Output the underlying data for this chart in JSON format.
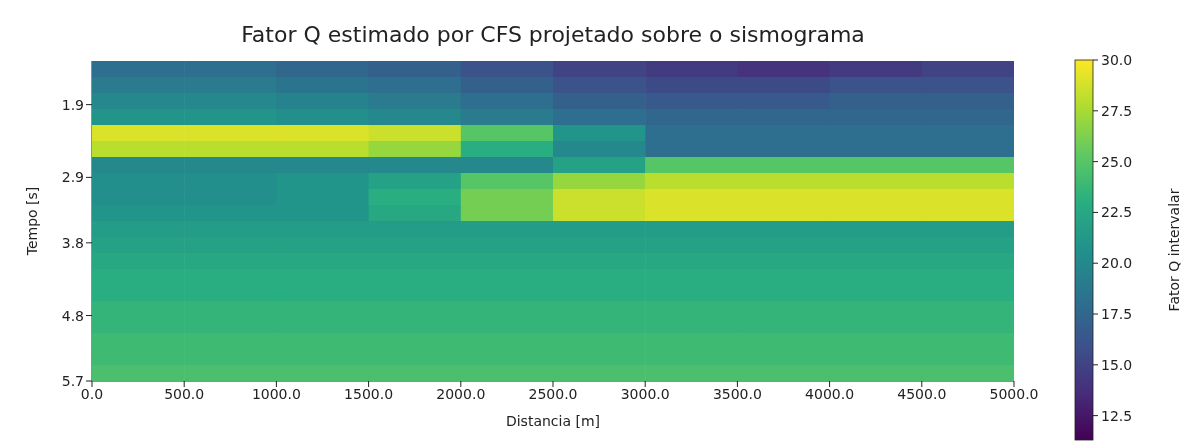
{
  "chart_data": {
    "type": "heatmap",
    "title": "Fator Q estimado por CFS projetado sobre o sismograma",
    "xlabel": "Distancia [m]",
    "ylabel": "Tempo [s]",
    "clabel": "Fator Q intervalar",
    "x": [
      250,
      750,
      1250,
      1750,
      2250,
      2750,
      3250,
      3750,
      4250,
      4750
    ],
    "y": [
      1.41,
      1.63,
      1.85,
      2.07,
      2.29,
      2.51,
      2.73,
      2.95,
      3.17,
      3.39,
      3.61,
      3.83,
      4.05,
      4.27,
      4.49,
      4.71,
      4.93,
      5.15,
      5.37,
      5.59
    ],
    "cells": [
      [
        18,
        18,
        17.5,
        17,
        16,
        15,
        14.5,
        14,
        14.5,
        15
      ],
      [
        19,
        19,
        18.5,
        18,
        17,
        16,
        15.5,
        15.5,
        16,
        16
      ],
      [
        20,
        20,
        19.5,
        19,
        18,
        17,
        16.5,
        16.5,
        17,
        17
      ],
      [
        21,
        21,
        20.5,
        20,
        19,
        18,
        17.5,
        17.5,
        17.5,
        17.5
      ],
      [
        29,
        29,
        29,
        28.5,
        25,
        21,
        18,
        18,
        18,
        18
      ],
      [
        28,
        28,
        28,
        27,
        23,
        20,
        18,
        18,
        18,
        18
      ],
      [
        20,
        20,
        20,
        20,
        20,
        22,
        25,
        25,
        25,
        25
      ],
      [
        20.5,
        20.5,
        21,
        22,
        25,
        27,
        28,
        28,
        28,
        28
      ],
      [
        20.5,
        20.5,
        21,
        23,
        26,
        28.5,
        29,
        29,
        29,
        29
      ],
      [
        21,
        21,
        21,
        22.5,
        26,
        28.5,
        29,
        29,
        29,
        29
      ],
      [
        21.5,
        21.5,
        21.5,
        21.5,
        21.5,
        21.5,
        21.5,
        21.5,
        21.5,
        21.5
      ],
      [
        22,
        22,
        22,
        22,
        22,
        22,
        22,
        22,
        22,
        22
      ],
      [
        22.5,
        22.5,
        22.5,
        22.5,
        22.5,
        22.5,
        22.5,
        22.5,
        22.5,
        22.5
      ],
      [
        23,
        23,
        23,
        23,
        23,
        23,
        23,
        23,
        23,
        23
      ],
      [
        23,
        23,
        23,
        23,
        23,
        23,
        23,
        23,
        23,
        23
      ],
      [
        23.5,
        23.5,
        23.5,
        23.5,
        23.5,
        23.5,
        23.5,
        23.5,
        23.5,
        23.5
      ],
      [
        23.5,
        23.5,
        23.5,
        23.5,
        23.5,
        23.5,
        23.5,
        23.5,
        23.5,
        23.5
      ],
      [
        24,
        24,
        24,
        24,
        24,
        24,
        24,
        24,
        24,
        24
      ],
      [
        24,
        24,
        24,
        24,
        24,
        24,
        24,
        24,
        24,
        24
      ],
      [
        24.5,
        24.5,
        24.5,
        24.5,
        24.5,
        24.5,
        24.5,
        24.5,
        24.5,
        24.5
      ]
    ],
    "xlim": [
      0,
      5000
    ],
    "xticks": [
      {
        "value": 0,
        "label": "0.0"
      },
      {
        "value": 500,
        "label": "500.0"
      },
      {
        "value": 1000,
        "label": "1000.0"
      },
      {
        "value": 1500,
        "label": "1500.0"
      },
      {
        "value": 2000,
        "label": "2000.0"
      },
      {
        "value": 2500,
        "label": "2500.0"
      },
      {
        "value": 3000,
        "label": "3000.0"
      },
      {
        "value": 3500,
        "label": "3500.0"
      },
      {
        "value": 4000,
        "label": "4000.0"
      },
      {
        "value": 4500,
        "label": "4500.0"
      },
      {
        "value": 5000,
        "label": "5000.0"
      }
    ],
    "ylim": [
      5.7,
      1.3
    ],
    "yticks": [
      1.9,
      2.9,
      3.8,
      4.8,
      5.7
    ],
    "clim": [
      11.3,
      30
    ],
    "cticks": [
      {
        "value": 12.5,
        "label": "12.5"
      },
      {
        "value": 15,
        "label": "15.0"
      },
      {
        "value": 17.5,
        "label": "17.5"
      },
      {
        "value": 20,
        "label": "20.0"
      },
      {
        "value": 22.5,
        "label": "22.5"
      },
      {
        "value": 25,
        "label": "25.0"
      },
      {
        "value": 27.5,
        "label": "27.5"
      },
      {
        "value": 30,
        "label": "30.0"
      }
    ]
  }
}
